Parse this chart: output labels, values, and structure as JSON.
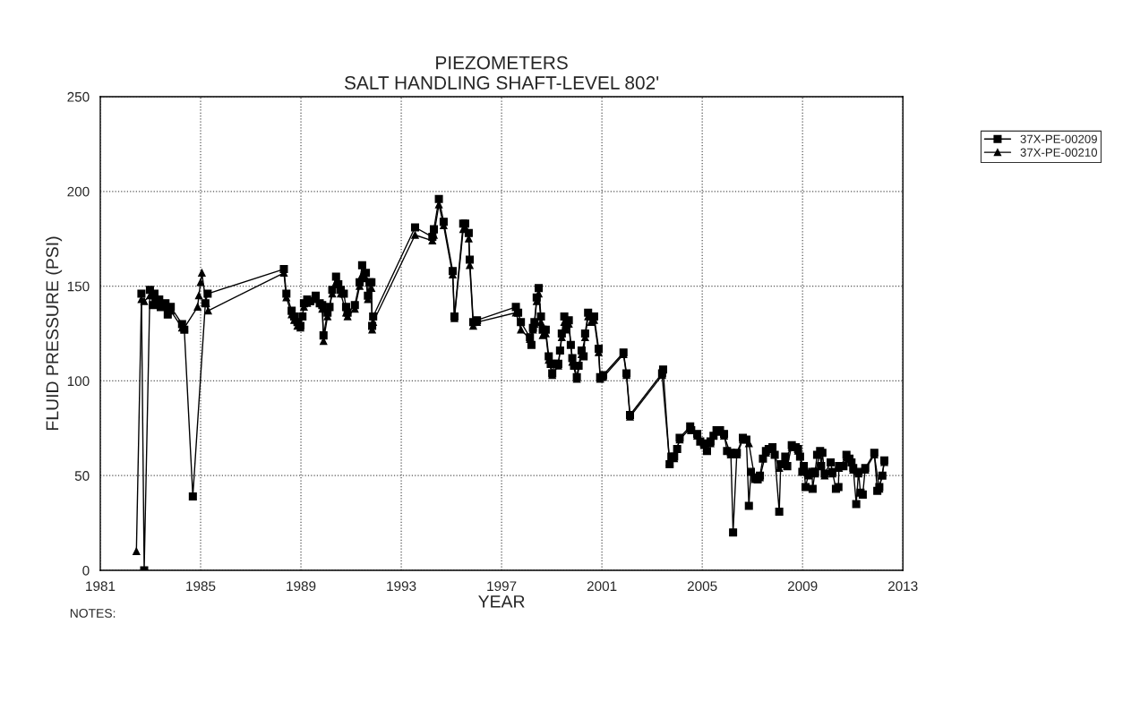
{
  "chart_data": {
    "type": "line",
    "title": "PIEZOMETERS\nSALT HANDLING SHAFT-LEVEL 802'",
    "xlabel": "YEAR",
    "ylabel": "FLUID PRESSURE (PSI)",
    "xlim": [
      1981,
      2013
    ],
    "xticks": [
      1981,
      1985,
      1989,
      1993,
      1997,
      2001,
      2005,
      2009,
      2013
    ],
    "ylim": [
      0,
      250
    ],
    "yticks": [
      0,
      50,
      100,
      150,
      200,
      250
    ],
    "grid": true,
    "legend": "top right",
    "annotations": [
      "NOTES:"
    ],
    "series": [
      {
        "name": "37X-PE-00209",
        "color": "#000000",
        "marker": "square",
        "x": [
          1982.64,
          1982.75,
          1982.98,
          1983.1,
          1983.16,
          1983.35,
          1983.41,
          1983.6,
          1983.69,
          1983.81,
          1984.26,
          1984.35,
          1984.69,
          1985.19,
          1985.28,
          1988.32,
          1988.42,
          1988.63,
          1988.73,
          1988.86,
          1988.98,
          1989.06,
          1989.12,
          1989.25,
          1989.37,
          1989.59,
          1989.75,
          1989.85,
          1989.9,
          1990.06,
          1990.14,
          1990.25,
          1990.4,
          1990.49,
          1990.59,
          1990.71,
          1990.8,
          1990.86,
          1991.15,
          1991.34,
          1991.44,
          1991.59,
          1991.67,
          1991.74,
          1991.81,
          1991.84,
          1991.88,
          1993.55,
          1994.24,
          1994.3,
          1994.5,
          1994.69,
          1995.05,
          1995.12,
          1995.47,
          1995.55,
          1995.69,
          1995.73,
          1995.87,
          1996.02,
          1997.57,
          1997.66,
          1997.77,
          1998.13,
          1998.19,
          1998.25,
          1998.31,
          1998.4,
          1998.48,
          1998.57,
          1998.64,
          1998.76,
          1998.88,
          1998.96,
          1999.02,
          1999.12,
          1999.26,
          1999.33,
          1999.4,
          1999.5,
          1999.58,
          1999.68,
          1999.76,
          1999.82,
          1999.89,
          2000.0,
          2000.07,
          2000.19,
          2000.27,
          2000.33,
          2000.45,
          2000.57,
          2000.69,
          2000.87,
          2000.93,
          2001.05,
          2001.86,
          2001.98,
          2002.12,
          2003.4,
          2003.44,
          2003.7,
          2003.77,
          2003.88,
          2004.0,
          2004.1,
          2004.52,
          2004.56,
          2004.8,
          2004.92,
          2005.07,
          2005.19,
          2005.33,
          2005.45,
          2005.57,
          2005.71,
          2005.87,
          2005.99,
          2006.14,
          2006.23,
          2006.38,
          2006.62,
          2006.76,
          2006.86,
          2006.94,
          2007.1,
          2007.21,
          2007.3,
          2007.42,
          2007.54,
          2007.65,
          2007.8,
          2007.89,
          2008.07,
          2008.13,
          2008.31,
          2008.39,
          2008.57,
          2008.73,
          2008.82,
          2008.9,
          2008.99,
          2009.05,
          2009.12,
          2009.24,
          2009.38,
          2009.4,
          2009.5,
          2009.58,
          2009.7,
          2009.74,
          2009.79,
          2009.88,
          2010.12,
          2010.19,
          2010.33,
          2010.43,
          2010.45,
          2010.63,
          2010.75,
          2010.87,
          2010.95,
          2011.02,
          2011.14,
          2011.23,
          2011.31,
          2011.4,
          2011.5,
          2011.86,
          2011.98,
          2012.06,
          2012.18,
          2012.26
        ],
        "values": [
          146,
          0,
          148,
          140,
          146,
          143,
          139,
          141,
          135,
          139,
          130,
          127,
          39,
          141,
          146,
          159,
          146,
          137,
          134,
          131,
          129,
          134,
          141,
          143,
          142,
          145,
          141,
          140,
          124,
          136,
          139,
          148,
          155,
          151,
          148,
          146,
          139,
          136,
          140,
          152,
          161,
          157,
          145,
          152,
          152,
          129,
          134,
          181,
          176,
          180,
          196,
          184,
          158,
          134,
          183,
          183,
          178,
          164,
          131,
          132,
          139,
          136,
          131,
          123,
          119,
          128,
          131,
          144,
          149,
          134,
          127,
          127,
          113,
          109,
          104,
          109,
          109,
          116,
          125,
          134,
          129,
          132,
          119,
          112,
          108,
          102,
          108,
          116,
          113,
          125,
          136,
          134,
          134,
          117,
          102,
          103,
          115,
          104,
          82,
          104,
          106,
          56,
          60,
          60,
          64,
          70,
          76,
          74,
          72,
          68,
          67,
          63,
          68,
          71,
          74,
          74,
          72,
          63,
          62,
          20,
          62,
          70,
          69,
          34,
          52,
          49,
          48,
          50,
          59,
          63,
          64,
          65,
          61,
          31,
          56,
          60,
          55,
          66,
          65,
          64,
          60,
          52,
          55,
          44,
          51,
          52,
          43,
          52,
          61,
          63,
          55,
          62,
          51,
          57,
          52,
          43,
          44,
          55,
          55,
          61,
          59,
          57,
          54,
          35,
          52,
          41,
          40,
          54,
          62,
          42,
          44,
          50,
          58
        ]
      },
      {
        "name": "37X-PE-00210",
        "color": "#000000",
        "marker": "triangle",
        "x": [
          1982.44,
          1982.64,
          1982.75,
          1982.98,
          1983.16,
          1983.35,
          1983.6,
          1983.81,
          1984.26,
          1984.35,
          1984.88,
          1984.93,
          1985.0,
          1985.05,
          1985.22,
          1985.3,
          1988.32,
          1988.42,
          1988.63,
          1988.73,
          1988.86,
          1988.98,
          1989.12,
          1989.25,
          1989.59,
          1989.85,
          1989.9,
          1990.06,
          1990.25,
          1990.4,
          1990.59,
          1990.8,
          1990.86,
          1991.15,
          1991.34,
          1991.44,
          1991.59,
          1991.67,
          1991.81,
          1991.84,
          1991.88,
          1993.55,
          1994.24,
          1994.3,
          1994.5,
          1994.69,
          1995.05,
          1995.12,
          1995.47,
          1995.55,
          1995.69,
          1995.73,
          1995.87,
          1996.02,
          1997.57,
          1997.77,
          1998.13,
          1998.25,
          1998.31,
          1998.4,
          1998.48,
          1998.57,
          1998.64,
          1998.76,
          1998.88,
          1999.02,
          1999.26,
          1999.4,
          1999.5,
          1999.58,
          1999.68,
          1999.82,
          2000.0,
          2000.19,
          2000.33,
          2000.45,
          2000.57,
          2000.69,
          2000.87,
          2000.93,
          2001.05,
          2001.86,
          2001.98,
          2002.12,
          2003.4,
          2003.7,
          2003.88,
          2004.1,
          2004.52,
          2004.8,
          2005.07,
          2005.33,
          2005.57,
          2005.87,
          2006.14,
          2006.38,
          2006.62,
          2006.86,
          2007.1,
          2007.3,
          2007.54,
          2007.8,
          2008.07,
          2008.31,
          2008.57,
          2008.82,
          2009.05,
          2009.24,
          2009.5,
          2009.7,
          2009.88,
          2010.19,
          2010.45,
          2010.75,
          2011.02,
          2011.23,
          2011.5,
          2011.86,
          2012.06,
          2012.26
        ],
        "values": [
          10,
          143,
          142,
          145,
          143,
          141,
          139,
          137,
          128,
          128,
          139,
          145,
          152,
          157,
          141,
          137,
          157,
          144,
          135,
          132,
          129,
          128,
          139,
          141,
          143,
          138,
          121,
          134,
          146,
          152,
          146,
          136,
          134,
          138,
          150,
          156,
          154,
          143,
          149,
          127,
          131,
          177,
          174,
          177,
          193,
          182,
          156,
          133,
          180,
          181,
          175,
          161,
          129,
          131,
          136,
          127,
          122,
          127,
          130,
          142,
          146,
          131,
          124,
          125,
          111,
          103,
          108,
          123,
          131,
          127,
          130,
          110,
          101,
          114,
          123,
          134,
          131,
          132,
          115,
          101,
          102,
          114,
          103,
          81,
          103,
          57,
          59,
          69,
          75,
          71,
          66,
          67,
          73,
          71,
          61,
          61,
          69,
          67,
          48,
          49,
          62,
          64,
          54,
          59,
          65,
          63,
          54,
          50,
          51,
          62,
          50,
          51,
          54,
          60,
          53,
          51,
          53,
          61,
          43,
          57
        ]
      }
    ]
  }
}
